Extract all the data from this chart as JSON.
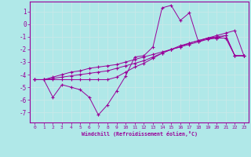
{
  "xlabel": "Windchill (Refroidissement éolien,°C)",
  "background_color": "#b0e8e8",
  "grid_color": "#c8e8e8",
  "line_color": "#990099",
  "x_ticks": [
    0,
    1,
    2,
    3,
    4,
    5,
    6,
    7,
    8,
    9,
    10,
    11,
    12,
    13,
    14,
    15,
    16,
    17,
    18,
    19,
    20,
    21,
    22,
    23
  ],
  "y_ticks": [
    -7,
    -6,
    -5,
    -4,
    -3,
    -2,
    -1,
    0,
    1
  ],
  "ylim": [
    -7.8,
    1.8
  ],
  "xlim": [
    -0.5,
    23.5
  ],
  "line1": [
    -4.4,
    -4.4,
    -5.8,
    -4.8,
    -5.0,
    -5.2,
    -5.8,
    -7.2,
    -6.4,
    -5.3,
    -4.1,
    -2.6,
    -2.5,
    -1.8,
    1.3,
    1.5,
    0.3,
    0.9,
    -1.4,
    -1.1,
    -1.1,
    -1.1,
    -2.5,
    -2.5
  ],
  "line2": [
    -4.4,
    -4.4,
    -4.4,
    -4.4,
    -4.4,
    -4.4,
    -4.4,
    -4.4,
    -4.4,
    -4.2,
    -3.8,
    -3.4,
    -3.1,
    -2.7,
    -2.3,
    -2.0,
    -1.8,
    -1.5,
    -1.3,
    -1.1,
    -0.9,
    -0.7,
    -0.5,
    -2.5
  ],
  "line3": [
    -4.4,
    -4.4,
    -4.2,
    -4.0,
    -3.8,
    -3.7,
    -3.5,
    -3.4,
    -3.3,
    -3.2,
    -3.0,
    -2.8,
    -2.6,
    -2.4,
    -2.2,
    -2.0,
    -1.8,
    -1.6,
    -1.4,
    -1.2,
    -1.1,
    -0.9,
    -2.5,
    -2.5
  ],
  "line4": [
    -4.4,
    -4.4,
    -4.3,
    -4.2,
    -4.1,
    -4.0,
    -3.9,
    -3.8,
    -3.7,
    -3.5,
    -3.3,
    -3.1,
    -2.9,
    -2.6,
    -2.3,
    -2.0,
    -1.7,
    -1.5,
    -1.3,
    -1.1,
    -1.0,
    -0.9,
    -2.5,
    -2.5
  ]
}
